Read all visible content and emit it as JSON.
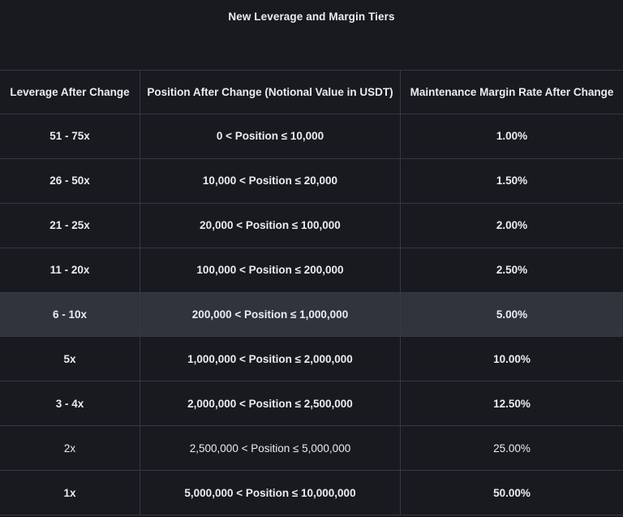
{
  "page": {
    "title": "New Leverage and Margin Tiers",
    "colors": {
      "bg": "#181a20",
      "text": "#eaecef",
      "border": "#343943",
      "highlight": "#2f343d"
    }
  },
  "table": {
    "columns": [
      "Leverage After Change",
      "Position After Change (Notional Value in USDT)",
      "Maintenance Margin Rate After Change"
    ],
    "rows": [
      {
        "leverage": "51 - 75x",
        "position": "0 < Position ≤ 10,000",
        "margin_rate": "1.00%",
        "highlighted": false
      },
      {
        "leverage": "26 - 50x",
        "position": "10,000 < Position ≤ 20,000",
        "margin_rate": "1.50%",
        "highlighted": false
      },
      {
        "leverage": "21 - 25x",
        "position": "20,000 < Position ≤ 100,000",
        "margin_rate": "2.00%",
        "highlighted": false
      },
      {
        "leverage": "11 - 20x",
        "position": "100,000 < Position ≤ 200,000",
        "margin_rate": "2.50%",
        "highlighted": false
      },
      {
        "leverage": "6 - 10x",
        "position": "200,000 < Position ≤ 1,000,000",
        "margin_rate": "5.00%",
        "highlighted": true
      },
      {
        "leverage": "5x",
        "position": "1,000,000 < Position ≤ 2,000,000",
        "margin_rate": "10.00%",
        "highlighted": false
      },
      {
        "leverage": "3 - 4x",
        "position": "2,000,000 < Position ≤ 2,500,000",
        "margin_rate": "12.50%",
        "highlighted": false
      },
      {
        "leverage": "2x",
        "position": "2,500,000 < Position ≤ 5,000,000",
        "margin_rate": "25.00%",
        "highlighted": false
      },
      {
        "leverage": "1x",
        "position": "5,000,000 < Position ≤ 10,000,000",
        "margin_rate": "50.00%",
        "highlighted": false
      }
    ]
  }
}
